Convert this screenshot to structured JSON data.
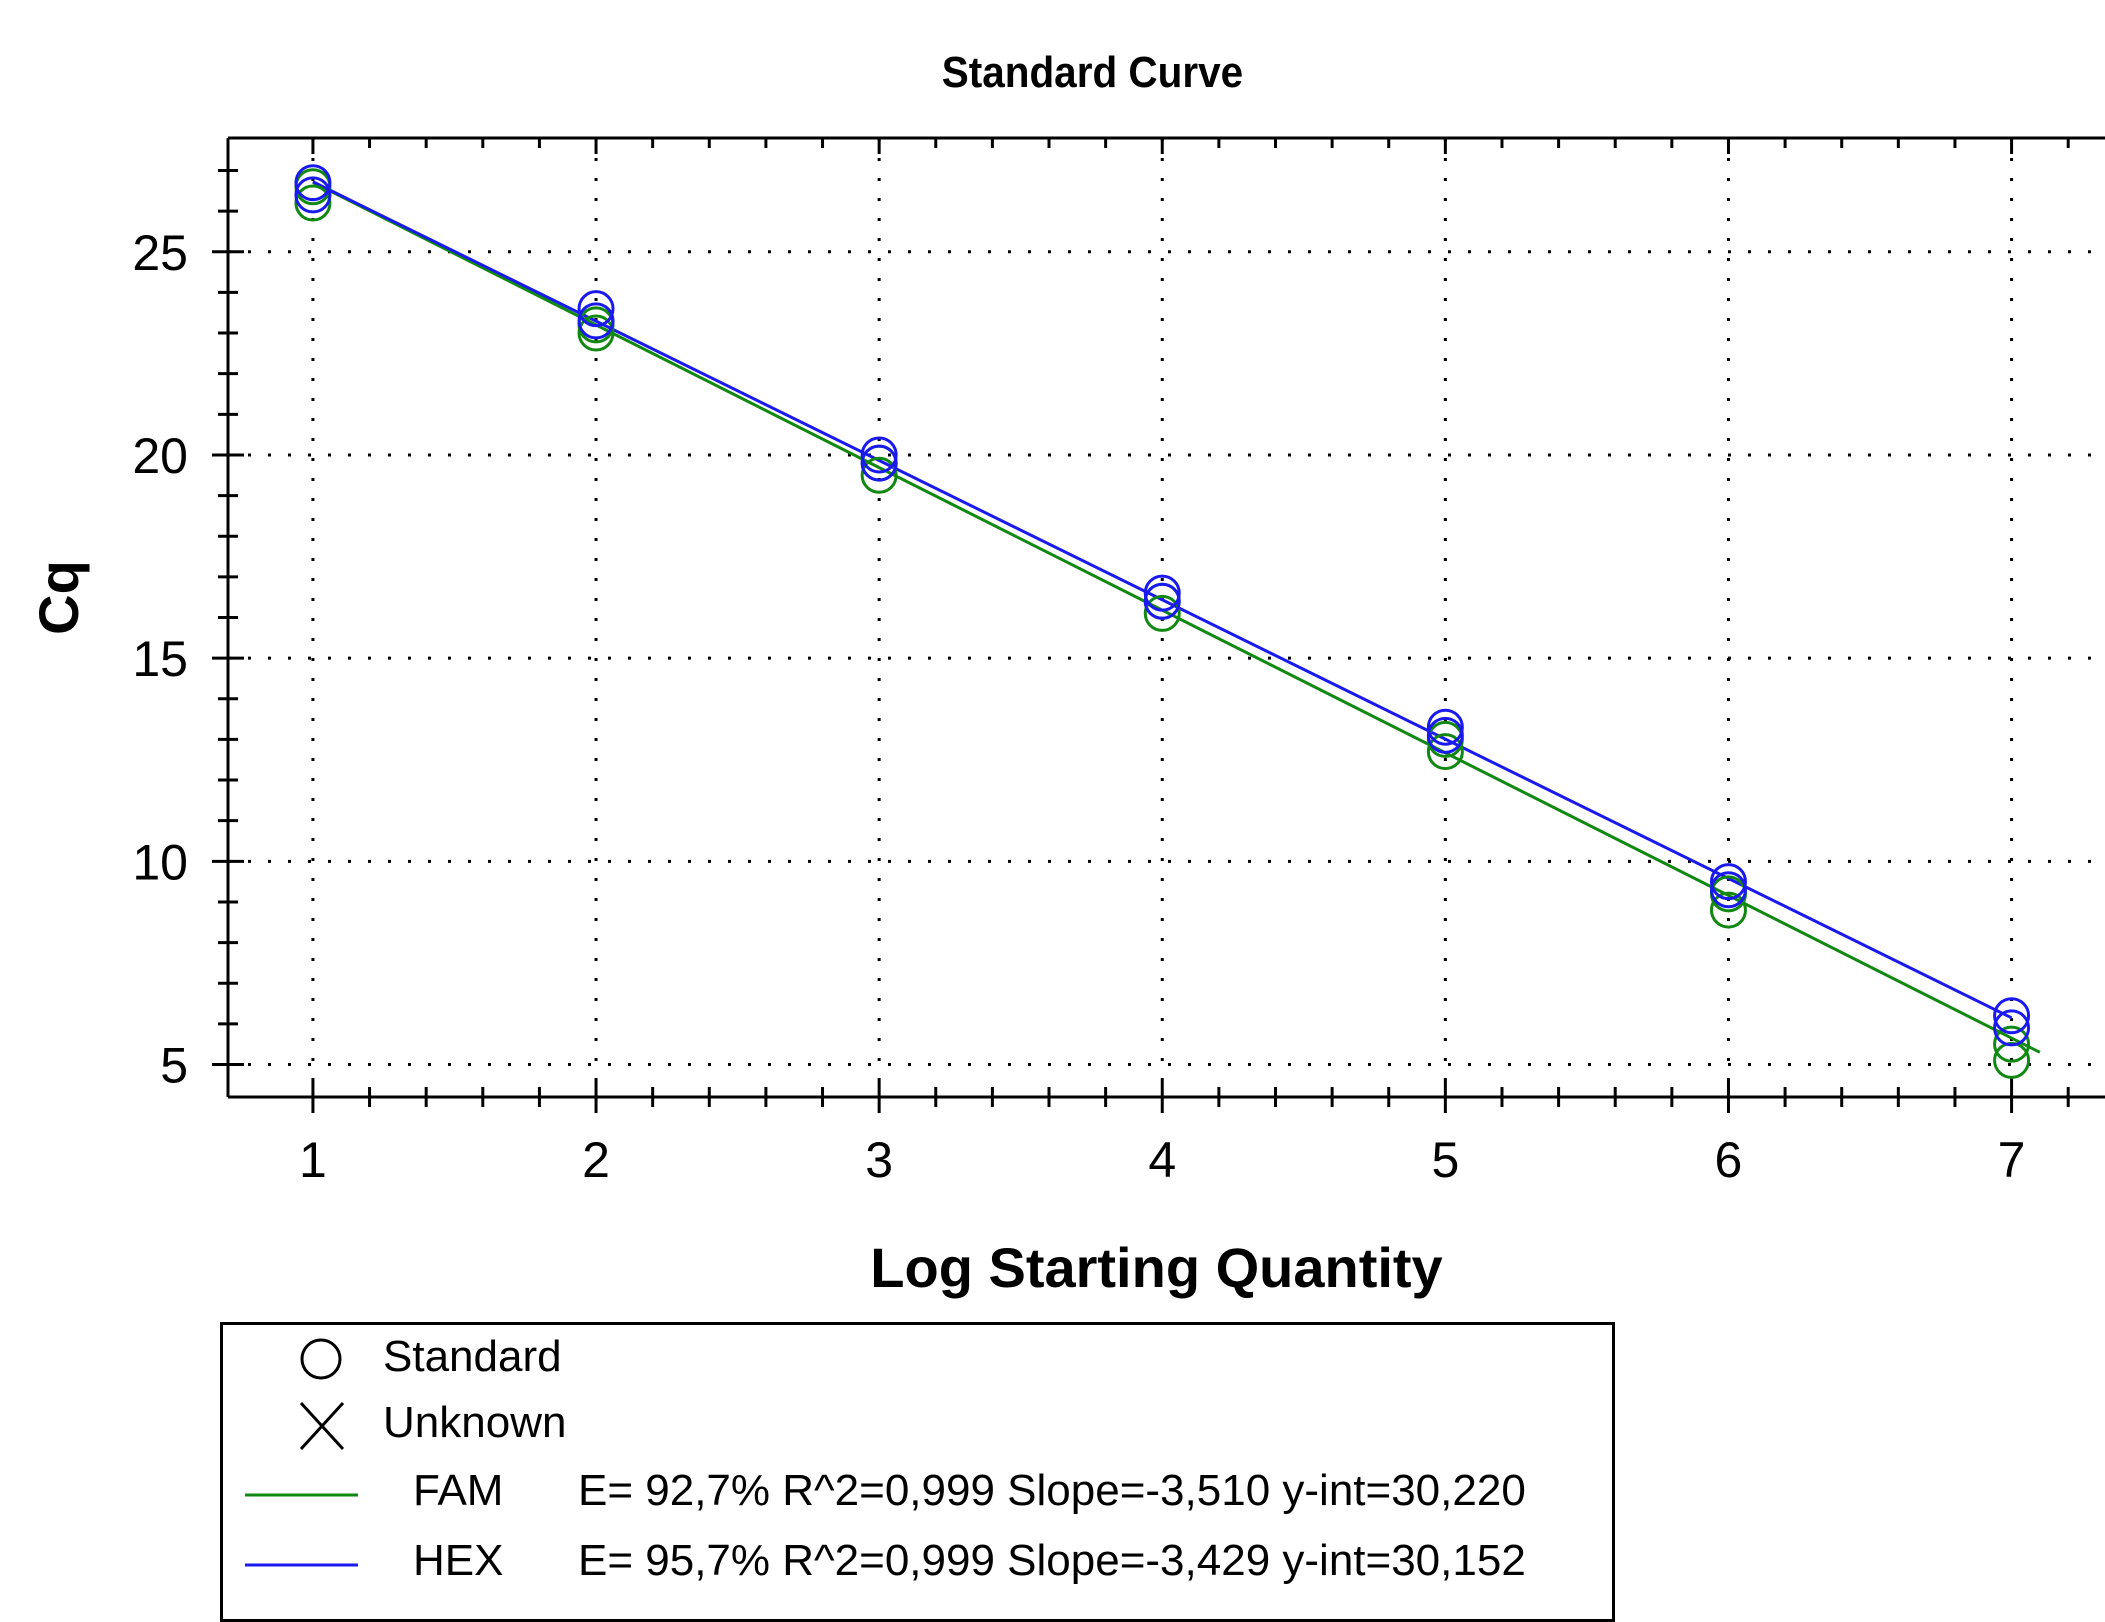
{
  "chart_data": {
    "type": "scatter",
    "title": "Standard Curve",
    "xlabel": "Log Starting Quantity",
    "ylabel": "Cq",
    "xlim": [
      0.7,
      7.33
    ],
    "ylim": [
      4.2,
      27.8
    ],
    "xticks": [
      "1",
      "2",
      "3",
      "4",
      "5",
      "6",
      "7"
    ],
    "yticks": [
      "5",
      "10",
      "15",
      "20",
      "25"
    ],
    "grid": true,
    "legend_position": "bottom-left",
    "legend": [
      {
        "symbol": "circle-icon",
        "label": "Standard"
      },
      {
        "symbol": "x-mark-icon",
        "label": "Unknown"
      }
    ],
    "series": [
      {
        "name": "FAM",
        "color": "#118811",
        "stats": "E= 92,7% R^2=0,999 Slope=-3,510 y-int=30,220",
        "slope": -3.51,
        "intercept": 30.22,
        "line_x": [
          1,
          7.1
        ],
        "points": [
          [
            1,
            26.6
          ],
          [
            1,
            26.2
          ],
          [
            2,
            23.2
          ],
          [
            2,
            23.0
          ],
          [
            3,
            19.8
          ],
          [
            3,
            19.5
          ],
          [
            4,
            16.4
          ],
          [
            4,
            16.1
          ],
          [
            5,
            13.0
          ],
          [
            5,
            12.7
          ],
          [
            6,
            9.2
          ],
          [
            6,
            8.8
          ],
          [
            7,
            5.5
          ],
          [
            7,
            5.1
          ]
        ]
      },
      {
        "name": "HEX",
        "color": "#1a1aee",
        "stats": "E= 95,7% R^2=0,999 Slope=-3,429 y-int=30,152",
        "slope": -3.429,
        "intercept": 30.152,
        "line_x": [
          1,
          7.0
        ],
        "points": [
          [
            1,
            26.7
          ],
          [
            1,
            26.4
          ],
          [
            2,
            23.6
          ],
          [
            2,
            23.3
          ],
          [
            3,
            20.0
          ],
          [
            3,
            19.8
          ],
          [
            4,
            16.6
          ],
          [
            4,
            16.4
          ],
          [
            5,
            13.3
          ],
          [
            5,
            13.1
          ],
          [
            6,
            9.5
          ],
          [
            6,
            9.3
          ],
          [
            7,
            6.2
          ],
          [
            7,
            5.9
          ]
        ]
      }
    ]
  }
}
